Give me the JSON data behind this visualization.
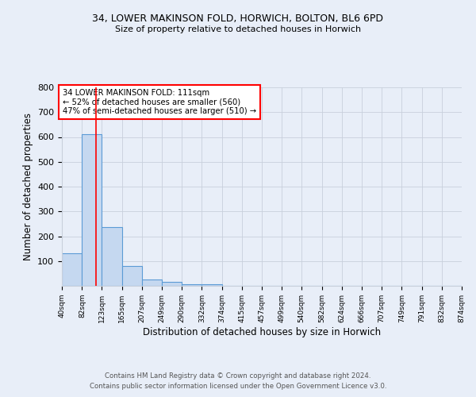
{
  "title": "34, LOWER MAKINSON FOLD, HORWICH, BOLTON, BL6 6PD",
  "subtitle": "Size of property relative to detached houses in Horwich",
  "xlabel": "Distribution of detached houses by size in Horwich",
  "ylabel": "Number of detached properties",
  "bin_edges": [
    40,
    82,
    123,
    165,
    207,
    249,
    290,
    332,
    374,
    415,
    457,
    499,
    540,
    582,
    624,
    666,
    707,
    749,
    791,
    832,
    874
  ],
  "bin_counts": [
    130,
    610,
    238,
    80,
    25,
    15,
    8,
    8,
    0,
    0,
    0,
    0,
    0,
    0,
    0,
    0,
    0,
    0,
    0,
    0
  ],
  "bar_color": "#c5d8f0",
  "bar_edge_color": "#5b9bd5",
  "red_line_x": 111,
  "annotation_text": "34 LOWER MAKINSON FOLD: 111sqm\n← 52% of detached houses are smaller (560)\n47% of semi-detached houses are larger (510) →",
  "annotation_box_color": "white",
  "annotation_box_edge": "red",
  "ylim": [
    0,
    800
  ],
  "yticks": [
    0,
    100,
    200,
    300,
    400,
    500,
    600,
    700,
    800
  ],
  "background_color": "#e8eef8",
  "plot_bg_color": "#e8eef8",
  "grid_color": "#c8d0dc",
  "footer_line1": "Contains HM Land Registry data © Crown copyright and database right 2024.",
  "footer_line2": "Contains public sector information licensed under the Open Government Licence v3.0.",
  "tick_labels": [
    "40sqm",
    "82sqm",
    "123sqm",
    "165sqm",
    "207sqm",
    "249sqm",
    "290sqm",
    "332sqm",
    "374sqm",
    "415sqm",
    "457sqm",
    "499sqm",
    "540sqm",
    "582sqm",
    "624sqm",
    "666sqm",
    "707sqm",
    "749sqm",
    "791sqm",
    "832sqm",
    "874sqm"
  ]
}
